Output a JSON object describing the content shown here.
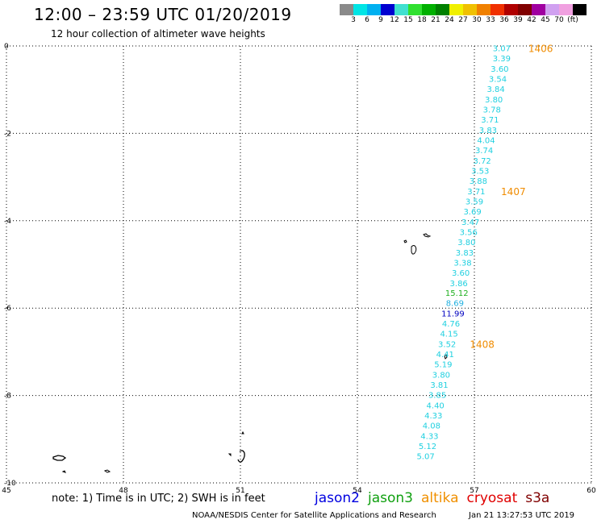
{
  "header": {
    "title": "12:00 – 23:59 UTC 01/20/2019",
    "subtitle": "12 hour collection of altimeter wave heights"
  },
  "color_scale": {
    "colors": [
      "#8a8a8a",
      "#00e5e5",
      "#00b0f0",
      "#0000d0",
      "#40e0d0",
      "#30e030",
      "#00b000",
      "#008000",
      "#f0f000",
      "#f0c000",
      "#f08000",
      "#f03000",
      "#b00000",
      "#800000",
      "#a000a0",
      "#d0a0f0",
      "#f0a0e0",
      "#000000"
    ],
    "labels": [
      "3",
      "6",
      "9",
      "12",
      "15",
      "18",
      "21",
      "24",
      "27",
      "30",
      "33",
      "36",
      "39",
      "42",
      "45",
      "70",
      "(ft)"
    ]
  },
  "map": {
    "x_ticks": [
      "45",
      "48",
      "51",
      "54",
      "57",
      "60"
    ],
    "y_ticks": [
      "0",
      "-2",
      "-4",
      "-6",
      "-8",
      "-10"
    ],
    "lon_range": [
      45,
      60
    ],
    "lat_range": [
      -10,
      0
    ]
  },
  "chart_data": {
    "type": "scatter",
    "xlabel": "",
    "ylabel": "",
    "xlim": [
      45,
      60
    ],
    "ylim": [
      -10,
      0
    ],
    "points": [
      {
        "lon": 57.7,
        "lat": -0.05,
        "value": "3.07",
        "color": "#20d0e0"
      },
      {
        "lon": 57.7,
        "lat": -0.28,
        "value": "3.39",
        "color": "#20d0e0"
      },
      {
        "lon": 57.65,
        "lat": -0.52,
        "value": "3.60",
        "color": "#20d0e0"
      },
      {
        "lon": 57.6,
        "lat": -0.75,
        "value": "3.54",
        "color": "#20d0e0"
      },
      {
        "lon": 57.55,
        "lat": -0.98,
        "value": "3.84",
        "color": "#20d0e0"
      },
      {
        "lon": 57.5,
        "lat": -1.22,
        "value": "3.80",
        "color": "#20d0e0"
      },
      {
        "lon": 57.45,
        "lat": -1.45,
        "value": "3.78",
        "color": "#20d0e0"
      },
      {
        "lon": 57.4,
        "lat": -1.68,
        "value": "3.71",
        "color": "#20d0e0"
      },
      {
        "lon": 57.35,
        "lat": -1.92,
        "value": "3.83",
        "color": "#20d0e0"
      },
      {
        "lon": 57.3,
        "lat": -2.15,
        "value": "4.04",
        "color": "#20d0e0"
      },
      {
        "lon": 57.25,
        "lat": -2.38,
        "value": "3.74",
        "color": "#20d0e0"
      },
      {
        "lon": 57.2,
        "lat": -2.62,
        "value": "3.72",
        "color": "#20d0e0"
      },
      {
        "lon": 57.15,
        "lat": -2.85,
        "value": "3.53",
        "color": "#20d0e0"
      },
      {
        "lon": 57.1,
        "lat": -3.08,
        "value": "3.88",
        "color": "#20d0e0"
      },
      {
        "lon": 57.05,
        "lat": -3.32,
        "value": "3.71",
        "color": "#20d0e0"
      },
      {
        "lon": 57.0,
        "lat": -3.55,
        "value": "3.59",
        "color": "#20d0e0"
      },
      {
        "lon": 56.95,
        "lat": -3.78,
        "value": "3.69",
        "color": "#20d0e0"
      },
      {
        "lon": 56.9,
        "lat": -4.02,
        "value": "3.47",
        "color": "#20d0e0"
      },
      {
        "lon": 56.85,
        "lat": -4.25,
        "value": "3.56",
        "color": "#20d0e0"
      },
      {
        "lon": 56.8,
        "lat": -4.48,
        "value": "3.80",
        "color": "#20d0e0"
      },
      {
        "lon": 56.75,
        "lat": -4.72,
        "value": "3.83",
        "color": "#20d0e0"
      },
      {
        "lon": 56.7,
        "lat": -4.95,
        "value": "3.38",
        "color": "#20d0e0"
      },
      {
        "lon": 56.65,
        "lat": -5.18,
        "value": "3.60",
        "color": "#20d0e0"
      },
      {
        "lon": 56.6,
        "lat": -5.42,
        "value": "3.86",
        "color": "#20d0e0"
      },
      {
        "lon": 56.55,
        "lat": -5.65,
        "value": "15.12",
        "color": "#20b020"
      },
      {
        "lon": 56.5,
        "lat": -5.88,
        "value": "8.69",
        "color": "#20b0e0"
      },
      {
        "lon": 56.45,
        "lat": -6.12,
        "value": "11.99",
        "color": "#0000c0"
      },
      {
        "lon": 56.4,
        "lat": -6.35,
        "value": "4.76",
        "color": "#20d0e0"
      },
      {
        "lon": 56.35,
        "lat": -6.58,
        "value": "4.15",
        "color": "#20d0e0"
      },
      {
        "lon": 56.3,
        "lat": -6.82,
        "value": "3.52",
        "color": "#20d0e0"
      },
      {
        "lon": 56.25,
        "lat": -7.05,
        "value": "4.41",
        "color": "#20d0e0"
      },
      {
        "lon": 56.2,
        "lat": -7.28,
        "value": "5.19",
        "color": "#20d0e0"
      },
      {
        "lon": 56.15,
        "lat": -7.52,
        "value": "3.80",
        "color": "#20d0e0"
      },
      {
        "lon": 56.1,
        "lat": -7.75,
        "value": "3.81",
        "color": "#20d0e0"
      },
      {
        "lon": 56.05,
        "lat": -7.98,
        "value": "3.85",
        "color": "#20d0e0"
      },
      {
        "lon": 56.0,
        "lat": -8.22,
        "value": "4.40",
        "color": "#20d0e0"
      },
      {
        "lon": 55.95,
        "lat": -8.45,
        "value": "4.33",
        "color": "#20d0e0"
      },
      {
        "lon": 55.9,
        "lat": -8.68,
        "value": "4.08",
        "color": "#20d0e0"
      },
      {
        "lon": 55.85,
        "lat": -8.92,
        "value": "4.33",
        "color": "#20d0e0"
      },
      {
        "lon": 55.8,
        "lat": -9.15,
        "value": "5.12",
        "color": "#20d0e0"
      },
      {
        "lon": 55.75,
        "lat": -9.38,
        "value": "5.07",
        "color": "#20d0e0"
      }
    ],
    "time_labels": [
      {
        "lon": 58.7,
        "lat": -0.05,
        "text": "1406"
      },
      {
        "lon": 58.0,
        "lat": -3.32,
        "text": "1407"
      },
      {
        "lon": 57.2,
        "lat": -6.82,
        "text": "1408"
      }
    ],
    "time_label_color": "#f08c00"
  },
  "note": "note:  1) Time is in UTC;  2) SWH is in feet",
  "legend": [
    {
      "label": "jason2",
      "color": "#0000e0"
    },
    {
      "label": "jason3",
      "color": "#10a010"
    },
    {
      "label": "altika",
      "color": "#f09000"
    },
    {
      "label": "cryosat",
      "color": "#e00000"
    },
    {
      "label": "s3a",
      "color": "#800000"
    }
  ],
  "footer": {
    "credit": "NOAA/NESDIS Center for Satellite Applications and Research",
    "timestamp": "Jan 21 13:27:53 UTC 2019"
  }
}
